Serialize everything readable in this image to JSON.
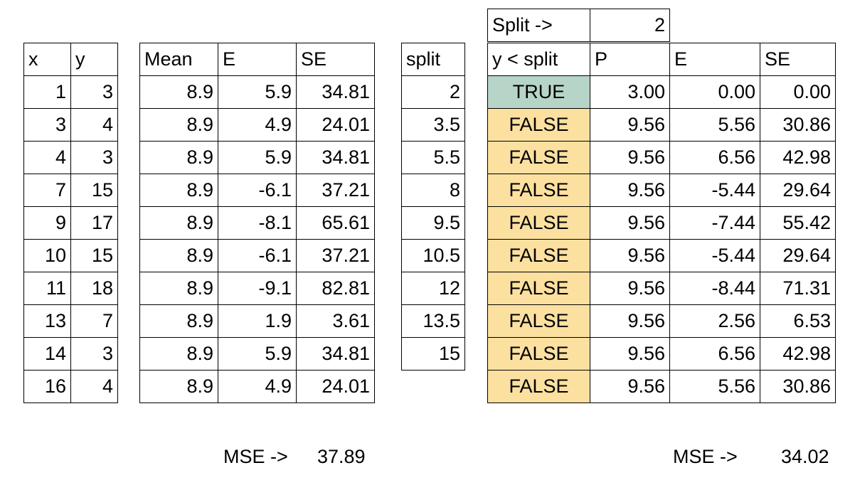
{
  "xy_table": {
    "headers": [
      "x",
      "y"
    ],
    "rows": [
      [
        "1",
        "3"
      ],
      [
        "3",
        "4"
      ],
      [
        "4",
        "3"
      ],
      [
        "7",
        "15"
      ],
      [
        "9",
        "17"
      ],
      [
        "10",
        "15"
      ],
      [
        "11",
        "18"
      ],
      [
        "13",
        "7"
      ],
      [
        "14",
        "3"
      ],
      [
        "16",
        "4"
      ]
    ]
  },
  "mean_table": {
    "headers": [
      "Mean",
      "E",
      "SE"
    ],
    "rows": [
      [
        "8.9",
        "5.9",
        "34.81"
      ],
      [
        "8.9",
        "4.9",
        "24.01"
      ],
      [
        "8.9",
        "5.9",
        "34.81"
      ],
      [
        "8.9",
        "-6.1",
        "37.21"
      ],
      [
        "8.9",
        "-8.1",
        "65.61"
      ],
      [
        "8.9",
        "-6.1",
        "37.21"
      ],
      [
        "8.9",
        "-9.1",
        "82.81"
      ],
      [
        "8.9",
        "1.9",
        "3.61"
      ],
      [
        "8.9",
        "5.9",
        "34.81"
      ],
      [
        "8.9",
        "4.9",
        "24.01"
      ]
    ]
  },
  "split_table": {
    "header": "split",
    "values": [
      "2",
      "3.5",
      "5.5",
      "8",
      "9.5",
      "10.5",
      "12",
      "13.5",
      "15"
    ]
  },
  "split_param": {
    "label": "Split ->",
    "value": "2"
  },
  "pred_table": {
    "headers": [
      "y < split",
      "P",
      "E",
      "SE"
    ],
    "rows": [
      [
        "TRUE",
        "3.00",
        "0.00",
        "0.00"
      ],
      [
        "FALSE",
        "9.56",
        "5.56",
        "30.86"
      ],
      [
        "FALSE",
        "9.56",
        "6.56",
        "42.98"
      ],
      [
        "FALSE",
        "9.56",
        "-5.44",
        "29.64"
      ],
      [
        "FALSE",
        "9.56",
        "-7.44",
        "55.42"
      ],
      [
        "FALSE",
        "9.56",
        "-5.44",
        "29.64"
      ],
      [
        "FALSE",
        "9.56",
        "-8.44",
        "71.31"
      ],
      [
        "FALSE",
        "9.56",
        "2.56",
        "6.53"
      ],
      [
        "FALSE",
        "9.56",
        "6.56",
        "42.98"
      ],
      [
        "FALSE",
        "9.56",
        "5.56",
        "30.86"
      ]
    ]
  },
  "mse_before": {
    "label": "MSE ->",
    "value": "37.89"
  },
  "mse_after": {
    "label": "MSE ->",
    "value": "34.02"
  },
  "colors": {
    "true_fill": "#b7d4c8",
    "false_fill": "#fbe0a0"
  }
}
